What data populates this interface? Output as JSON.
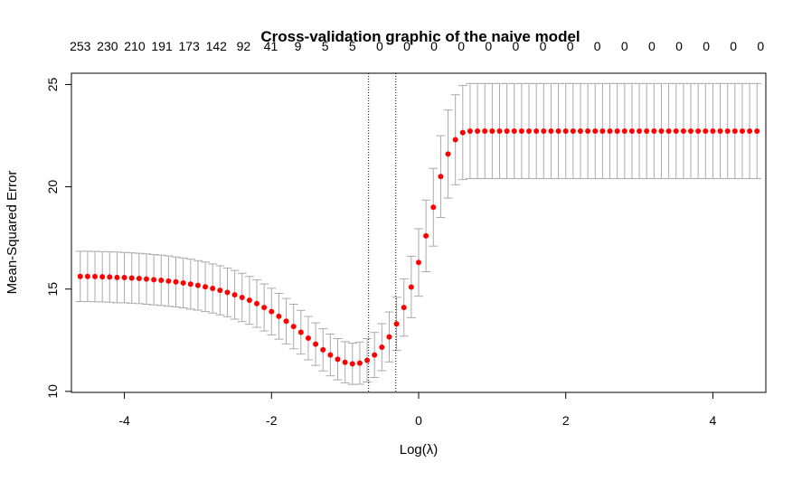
{
  "chart_data": {
    "type": "scatter",
    "title": "Cross-validation graphic of the naive model",
    "xlabel": "Log(λ)",
    "ylabel": "Mean-Squared Error",
    "xlim": [
      -4.72,
      4.72
    ],
    "ylim": [
      9.95,
      25.55
    ],
    "x_ticks": [
      -4,
      -2,
      0,
      2,
      4
    ],
    "x_tick_labels": [
      "-4",
      "-2",
      "0",
      "2",
      "4"
    ],
    "y_ticks": [
      10,
      15,
      20,
      25
    ],
    "y_tick_labels": [
      "10",
      "15",
      "20",
      "25"
    ],
    "top_axis": {
      "x": [
        -4.6,
        -4.23,
        -3.86,
        -3.49,
        -3.12,
        -2.75,
        -2.38,
        -2.01,
        -1.64,
        -1.27,
        -0.9,
        -0.53,
        -0.16,
        0.21,
        0.58,
        0.95,
        1.32,
        1.69,
        2.06,
        2.43,
        2.8,
        3.17,
        3.54,
        3.91,
        4.28,
        4.65
      ],
      "labels": [
        "253",
        "230",
        "210",
        "191",
        "173",
        "142",
        "92",
        "41",
        "9",
        "5",
        "5",
        "0",
        "0",
        "0",
        "0",
        "0",
        "0",
        "0",
        "0",
        "0",
        "0",
        "0",
        "0",
        "0",
        "0",
        "0"
      ]
    },
    "vlines": [
      -0.68,
      -0.31
    ],
    "series": [
      {
        "x": [
          -4.6,
          -4.5,
          -4.4,
          -4.3,
          -4.2,
          -4.1,
          -4.0,
          -3.9,
          -3.8,
          -3.7,
          -3.6,
          -3.5,
          -3.4,
          -3.3,
          -3.2,
          -3.1,
          -3.0,
          -2.9,
          -2.8,
          -2.7,
          -2.6,
          -2.5,
          -2.4,
          -2.3,
          -2.2,
          -2.1,
          -2.0,
          -1.9,
          -1.8,
          -1.7,
          -1.6,
          -1.5,
          -1.4,
          -1.3,
          -1.2,
          -1.1,
          -1.0,
          -0.9,
          -0.8,
          -0.7,
          -0.6,
          -0.5,
          -0.4,
          -0.3,
          -0.2,
          -0.1,
          0.0,
          0.1,
          0.2,
          0.3,
          0.4,
          0.5,
          0.6,
          0.7,
          0.8,
          0.9,
          1.0,
          1.1,
          1.2,
          1.3,
          1.4,
          1.5,
          1.6,
          1.7,
          1.8,
          1.9,
          2.0,
          2.1,
          2.2,
          2.3,
          2.4,
          2.5,
          2.6,
          2.7,
          2.8,
          2.9,
          3.0,
          3.1,
          3.2,
          3.3,
          3.4,
          3.5,
          3.6,
          3.7,
          3.8,
          3.9,
          4.0,
          4.1,
          4.2,
          4.3,
          4.4,
          4.5,
          4.6
        ],
        "y": [
          15.62,
          15.62,
          15.61,
          15.6,
          15.59,
          15.57,
          15.56,
          15.54,
          15.52,
          15.49,
          15.46,
          15.43,
          15.39,
          15.35,
          15.3,
          15.24,
          15.18,
          15.11,
          15.03,
          14.94,
          14.84,
          14.72,
          14.59,
          14.45,
          14.29,
          14.1,
          13.9,
          13.67,
          13.43,
          13.17,
          12.89,
          12.6,
          12.31,
          12.03,
          11.78,
          11.57,
          11.42,
          11.35,
          11.38,
          11.52,
          11.78,
          12.16,
          12.66,
          13.3,
          14.1,
          15.1,
          16.3,
          17.6,
          19.0,
          20.5,
          21.6,
          22.3,
          22.65,
          22.72,
          22.72,
          22.72,
          22.72,
          22.72,
          22.72,
          22.72,
          22.72,
          22.72,
          22.72,
          22.72,
          22.72,
          22.72,
          22.72,
          22.72,
          22.72,
          22.72,
          22.72,
          22.72,
          22.72,
          22.72,
          22.72,
          22.72,
          22.72,
          22.72,
          22.72,
          22.72,
          22.72,
          22.72,
          22.72,
          22.72,
          22.72,
          22.72,
          22.72,
          22.72,
          22.72,
          22.72,
          22.72,
          22.72,
          22.72
        ],
        "upper": [
          16.85,
          16.85,
          16.84,
          16.83,
          16.82,
          16.81,
          16.79,
          16.77,
          16.75,
          16.72,
          16.69,
          16.66,
          16.62,
          16.57,
          16.52,
          16.46,
          16.39,
          16.32,
          16.23,
          16.14,
          16.03,
          15.91,
          15.77,
          15.62,
          15.45,
          15.25,
          15.04,
          14.79,
          14.54,
          14.26,
          13.96,
          13.66,
          13.35,
          13.06,
          12.8,
          12.58,
          12.43,
          12.36,
          12.41,
          12.58,
          12.88,
          13.31,
          13.88,
          14.6,
          15.5,
          16.6,
          17.95,
          19.35,
          20.9,
          22.5,
          23.75,
          24.5,
          24.95,
          25.05,
          25.05,
          25.05,
          25.05,
          25.05,
          25.05,
          25.05,
          25.05,
          25.05,
          25.05,
          25.05,
          25.05,
          25.05,
          25.05,
          25.05,
          25.05,
          25.05,
          25.05,
          25.05,
          25.05,
          25.05,
          25.05,
          25.05,
          25.05,
          25.05,
          25.05,
          25.05,
          25.05,
          25.05,
          25.05,
          25.05,
          25.05,
          25.05,
          25.05,
          25.05,
          25.05,
          25.05,
          25.05,
          25.05,
          25.05
        ],
        "lower": [
          14.39,
          14.39,
          14.38,
          14.37,
          14.36,
          14.33,
          14.33,
          14.31,
          14.29,
          14.26,
          14.23,
          14.2,
          14.16,
          14.13,
          14.08,
          14.02,
          13.97,
          13.9,
          13.83,
          13.74,
          13.65,
          13.53,
          13.41,
          13.28,
          13.13,
          12.95,
          12.76,
          12.55,
          12.32,
          12.08,
          11.82,
          11.54,
          11.27,
          11.0,
          10.76,
          10.56,
          10.41,
          10.34,
          10.35,
          10.46,
          10.68,
          11.01,
          11.44,
          12.0,
          12.7,
          13.6,
          14.65,
          15.85,
          17.1,
          18.5,
          19.45,
          20.1,
          20.35,
          20.4,
          20.4,
          20.4,
          20.4,
          20.4,
          20.4,
          20.4,
          20.4,
          20.4,
          20.4,
          20.4,
          20.4,
          20.4,
          20.4,
          20.4,
          20.4,
          20.4,
          20.4,
          20.4,
          20.4,
          20.4,
          20.4,
          20.4,
          20.4,
          20.4,
          20.4,
          20.4,
          20.4,
          20.4,
          20.4,
          20.4,
          20.4,
          20.4,
          20.4,
          20.4,
          20.4,
          20.4,
          20.4,
          20.4,
          20.4
        ]
      }
    ],
    "grid": false,
    "colors": {
      "points": "#ff0000",
      "error_bars": "#aaaaaa",
      "axes": "#000000"
    }
  }
}
